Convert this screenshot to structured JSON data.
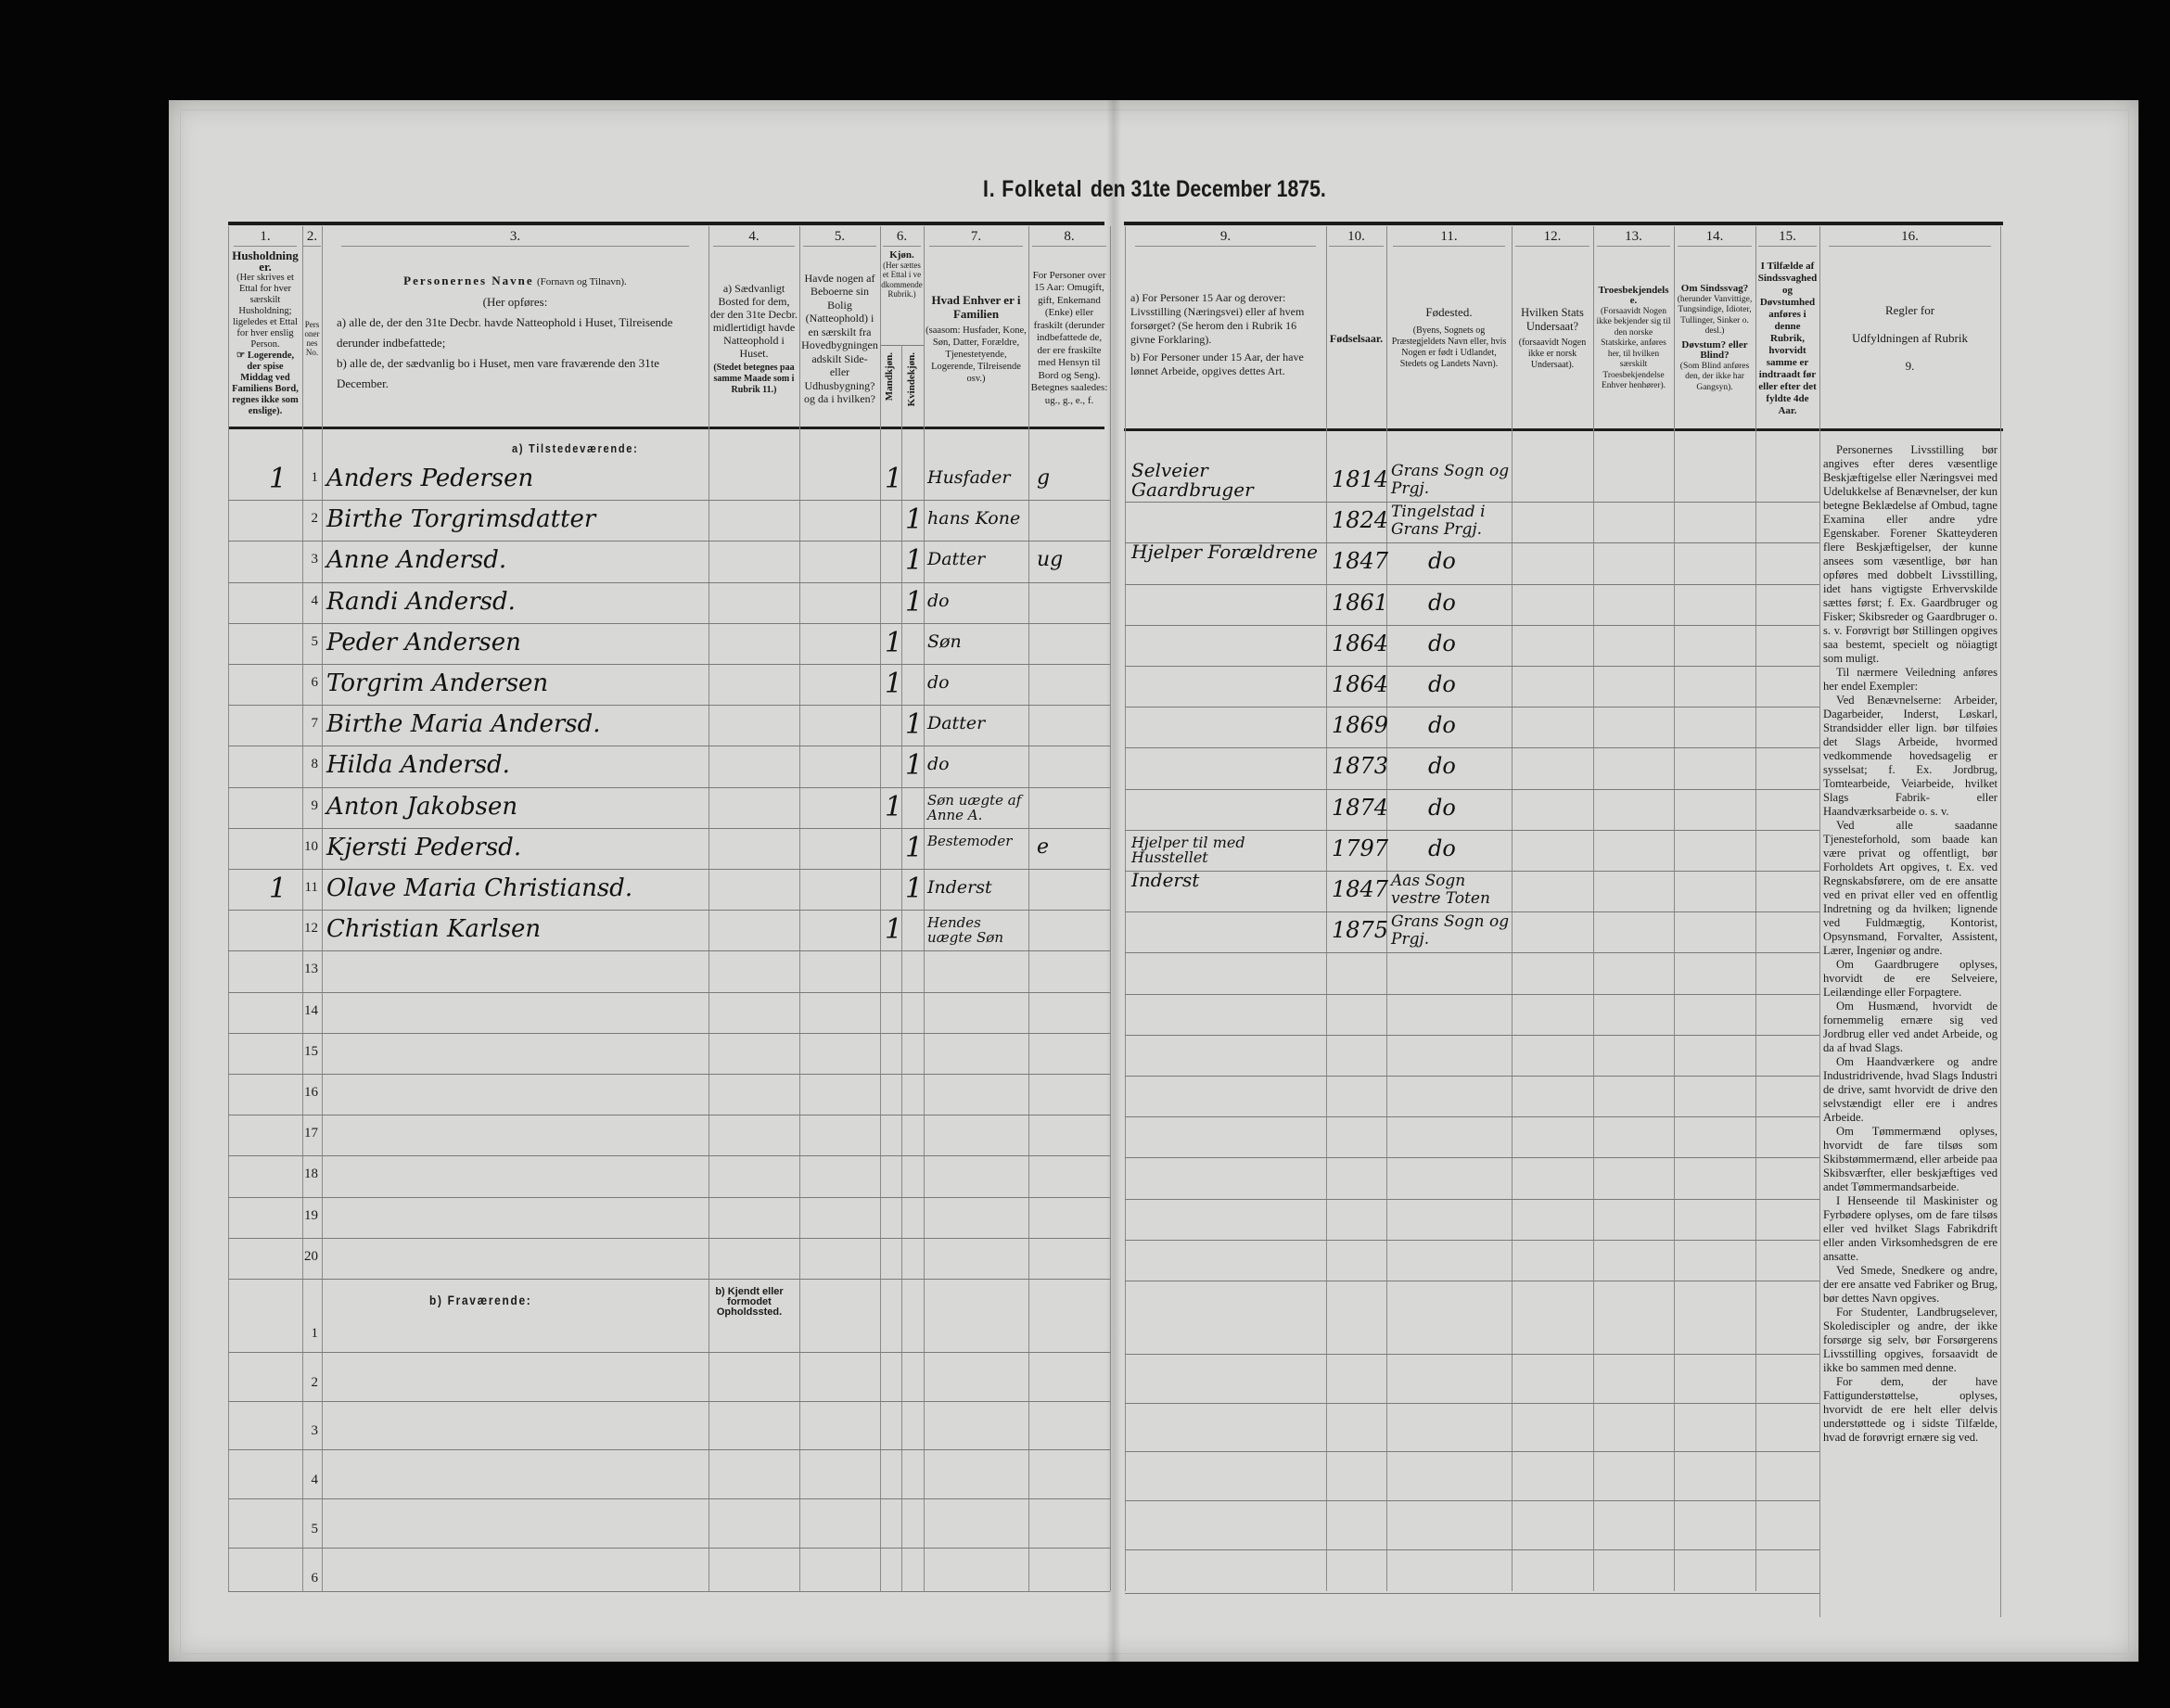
{
  "title": {
    "part1": "I. Folketal",
    "part2": "den 31te December 1875."
  },
  "header": {
    "c1": {
      "num": "1.",
      "title": "Husholdninger.",
      "text": "(Her skrives et Ettal for hver særskilt Husholdning; ligeledes et Ettal for hver enslig Person.",
      "note": "☞ Logerende, der spise Middag ved Familiens Bord, regnes ikke som enslige)."
    },
    "c2": {
      "num": "2.",
      "text": "Personernes No."
    },
    "c3": {
      "num": "3.",
      "title": "Personernes Navne",
      "title_note": "(Fornavn og Tilnavn).",
      "intro": "(Her opføres:",
      "a": "a) alle de, der den 31te Decbr. havde Natteophold i Huset, Tilreisende derunder indbefattede;",
      "b": "b) alle de, der sædvanlig bo i Huset, men vare fraværende den 31te December."
    },
    "c4": {
      "num": "4.",
      "text": "a) Sædvanligt Bosted for dem, der den 31te Decbr. midlertidigt havde Natteophold i Huset.",
      "note": "(Stedet betegnes paa samme Maade som i Rubrik 11.)"
    },
    "c5": {
      "num": "5.",
      "text": "Havde nogen af Beboerne sin Bolig (Natteophold) i en særskilt fra Hovedbygningen adskilt Side- eller Udhusbygning? og da i hvilken?"
    },
    "c6": {
      "num": "6.",
      "title": "Kjøn.",
      "text": "(Her sættes et Ettal i vedkommende Rubrik.)",
      "male": "Mandkjøn.",
      "female": "Kvindekjøn."
    },
    "c7": {
      "num": "7.",
      "title": "Hvad Enhver er i Familien",
      "text": "(saasom: Husfader, Kone, Søn, Datter, Forældre, Tjenestetyende, Logerende, Tilreisende osv.)"
    },
    "c8": {
      "num": "8.",
      "text": "For Personer over 15 Aar: Omugift, gift, Enkemand (Enke) eller fraskilt (derunder indbefattede de, der ere fraskilte med Hensyn til Bord og Seng). Betegnes saaledes: ug., g., e., f."
    },
    "c9": {
      "num": "9.",
      "a": "a) For Personer 15 Aar og derover: Livsstilling (Næringsvei) eller af hvem forsørget? (Se herom den i Rubrik 16 givne Forklaring).",
      "b": "b) For Personer under 15 Aar, der have lønnet Arbeide, opgives dettes Art."
    },
    "c10": {
      "num": "10.",
      "text": "Fødselsaar."
    },
    "c11": {
      "num": "11.",
      "title": "Fødested.",
      "text": "(Byens, Sognets og Præstegjeldets Navn eller, hvis Nogen er født i Udlandet, Stedets og Landets Navn)."
    },
    "c12": {
      "num": "12.",
      "title": "Hvilken Stats Undersaat?",
      "text": "(forsaavidt Nogen ikke er norsk Undersaat)."
    },
    "c13": {
      "num": "13.",
      "title": "Troesbekjendelse.",
      "text": "(Forsaavidt Nogen ikke bekjender sig til den norske Statskirke, anføres her, til hvilken særskilt Troesbekjendelse Enhver henhører)."
    },
    "c14": {
      "num": "14.",
      "title": "Om Sindssvag?",
      "text": "(herunder Vanvittige, Tungsindige, Idioter, Tullinger, Sinker o. desl.)",
      "title2": "Døvstum? eller Blind?",
      "text2": "(Som Blind anføres den, der ikke har Gangsyn)."
    },
    "c15": {
      "num": "15.",
      "text": "I Tilfælde af Sindssvaghed og Døvstumhed anføres i denne Rubrik, hvorvidt samme er indtraadt før eller efter det fyldte 4de Aar."
    },
    "c16": {
      "num": "16.",
      "text": "Regler for Udfyldningen af Rubrik 9."
    }
  },
  "present": {
    "label": "a) Tilstedeværende:",
    "rows": [
      {
        "no": "1",
        "household": "1",
        "name": "Anders Pedersen",
        "male": "1",
        "female": "",
        "role": "Husfader",
        "marital": "g",
        "occupation": "Selveier Gaardbruger",
        "year": "1814",
        "birthplace": "Grans Sogn og Prgj."
      },
      {
        "no": "2",
        "household": "",
        "name": "Birthe Torgrimsdatter",
        "male": "",
        "female": "1",
        "role": "hans Kone",
        "marital": "",
        "occupation": "",
        "year": "1824",
        "birthplace": "Tingelstad i Grans Prgj."
      },
      {
        "no": "3",
        "household": "",
        "name": "Anne Andersd.",
        "male": "",
        "female": "1",
        "role": "Datter",
        "marital": "ug",
        "occupation": "Hjelper Forældrene",
        "year": "1847",
        "birthplace": "do"
      },
      {
        "no": "4",
        "household": "",
        "name": "Randi Andersd.",
        "male": "",
        "female": "1",
        "role": "do",
        "marital": "",
        "occupation": "",
        "year": "1861",
        "birthplace": "do"
      },
      {
        "no": "5",
        "household": "",
        "name": "Peder Andersen",
        "male": "1",
        "female": "",
        "role": "Søn",
        "marital": "",
        "occupation": "",
        "year": "1864",
        "birthplace": "do"
      },
      {
        "no": "6",
        "household": "",
        "name": "Torgrim Andersen",
        "male": "1",
        "female": "",
        "role": "do",
        "marital": "",
        "occupation": "",
        "year": "1864",
        "birthplace": "do"
      },
      {
        "no": "7",
        "household": "",
        "name": "Birthe Maria Andersd.",
        "male": "",
        "female": "1",
        "role": "Datter",
        "marital": "",
        "occupation": "",
        "year": "1869",
        "birthplace": "do"
      },
      {
        "no": "8",
        "household": "",
        "name": "Hilda Andersd.",
        "male": "",
        "female": "1",
        "role": "do",
        "marital": "",
        "occupation": "",
        "year": "1873",
        "birthplace": "do"
      },
      {
        "no": "9",
        "household": "",
        "name": "Anton Jakobsen",
        "male": "1",
        "female": "",
        "role": "Søn uægte af Anne A.",
        "marital": "",
        "occupation": "",
        "year": "1874",
        "birthplace": "do"
      },
      {
        "no": "10",
        "household": "",
        "name": "Kjersti Pedersd.",
        "male": "",
        "female": "1",
        "role": "Bestemoder",
        "marital": "e",
        "occupation": "Hjelper til med Husstellet",
        "year": "1797",
        "birthplace": "do"
      },
      {
        "no": "11",
        "household": "1",
        "name": "Olave Maria Christiansd.",
        "male": "",
        "female": "1",
        "role": "Inderst",
        "marital": "",
        "occupation": "Inderst",
        "year": "1847",
        "birthplace": "Aas Sogn vestre Toten"
      },
      {
        "no": "12",
        "household": "",
        "name": "Christian Karlsen",
        "male": "1",
        "female": "",
        "role": "Hendes uægte Søn",
        "marital": "",
        "occupation": "",
        "year": "1875",
        "birthplace": "Grans Sogn og Prgj."
      },
      {
        "no": "13"
      },
      {
        "no": "14"
      },
      {
        "no": "15"
      },
      {
        "no": "16"
      },
      {
        "no": "17"
      },
      {
        "no": "18"
      },
      {
        "no": "19"
      },
      {
        "no": "20"
      }
    ]
  },
  "absent": {
    "label": "b) Fraværende:",
    "place_note": "b) Kjendt eller formodet Opholdssted.",
    "rows": [
      {
        "no": "1"
      },
      {
        "no": "2"
      },
      {
        "no": "3"
      },
      {
        "no": "4"
      },
      {
        "no": "5"
      },
      {
        "no": "6"
      }
    ]
  },
  "rules": [
    "Personernes Livsstilling bør angives efter deres væsentlige Beskjæftigelse eller Næringsvei med Udelukkelse af Benævnelser, der kun betegne Beklædelse af Ombud, tagne Examina eller andre ydre Egenskaber. Forener Skatteyderen flere Beskjæftigelser, der kunne ansees som væsentlige, bør han opføres med dobbelt Livsstilling, idet hans vigtigste Erhvervskilde sættes først; f. Ex. Gaardbruger og Fisker; Skibsreder og Gaardbruger o. s. v. Forøvrigt bør Stillingen opgives saa bestemt, specielt og nöiagtigt som muligt.",
    "Til nærmere Veiledning anføres her endel Exempler:",
    "Ved Benævnelserne: Arbeider, Dagarbeider, Inderst, Løskarl, Strandsidder eller lign. bør tilføies det Slags Arbeide, hvormed vedkommende hovedsagelig er sysselsat; f. Ex. Jordbrug, Tomtearbeide, Veiarbeide, hvilket Slags Fabrik- eller Haandværksarbeide o. s. v.",
    "Ved alle saadanne Tjenesteforhold, som baade kan være privat og offentligt, bør Forholdets Art opgives, t. Ex. ved Regnskabsførere, om de ere ansatte ved en privat eller ved en offentlig Indretning og da hvilken; lignende ved Fuldmægtig, Kontorist, Opsynsmand, Forvalter, Assistent, Lærer, Ingeniør og andre.",
    "Om Gaardbrugere oplyses, hvorvidt de ere Selveiere, Leilændinge eller Forpagtere.",
    "Om Husmænd, hvorvidt de fornemmelig ernære sig ved Jordbrug eller ved andet Arbeide, og da af hvad Slags.",
    "Om Haandværkere og andre Industridrivende, hvad Slags Industri de drive, samt hvorvidt de drive den selvstændigt eller ere i andres Arbeide.",
    "Om Tømmermænd oplyses, hvorvidt de fare tilsøs som Skibstømmermænd, eller arbeide paa Skibsværfter, eller beskjæftiges ved andet Tømmermandsarbeide.",
    "I Henseende til Maskinister og Fyrbødere oplyses, om de fare tilsøs eller ved hvilket Slags Fabrikdrift eller anden Virksomhedsgren de ere ansatte.",
    "Ved Smede, Snedkere og andre, der ere ansatte ved Fabriker og Brug, bør dettes Navn opgives.",
    "For Studenter, Landbrugselever, Skolediscipler og andre, der ikke forsørge sig selv, bør Forsørgerens Livsstilling opgives, forsaavidt de ikke bo sammen med denne.",
    "For dem, der have Fattigunderstøttelse, oplyses, hvorvidt de ere helt eller delvis understøttede og i sidste Tilfælde, hvad de forøvrigt ernære sig ved."
  ]
}
